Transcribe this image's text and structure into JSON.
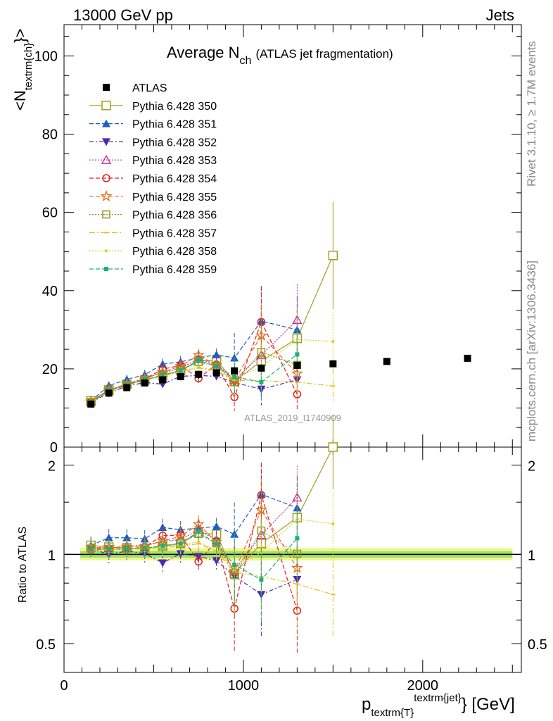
{
  "header": {
    "left": "13000 GeV pp",
    "right": "Jets"
  },
  "side": {
    "rivet": "Rivet 3.1.10, ≥ 1.7M events",
    "mcplots": "mcplots.cern.ch [arXiv:1306.3436]"
  },
  "chart_data": [
    {
      "type": "scatter",
      "title_main": "Average N",
      "title_sub": "ch",
      "title_tail": "(ATLAS jet fragmentation)",
      "ylabel_main": "<N",
      "ylabel_sub": "textrm{ch}",
      "ylabel_tail": "}>",
      "watermark": "ATLAS_2019_I1740909",
      "xlim": [
        0,
        2550
      ],
      "ylim": [
        0,
        108
      ],
      "yticks": [
        "0",
        "20",
        "40",
        "60",
        "80",
        "100"
      ],
      "yticks_values": [
        0,
        20,
        40,
        60,
        80,
        100
      ],
      "x": [
        150,
        250,
        350,
        450,
        550,
        650,
        750,
        850,
        950,
        1100,
        1300,
        1500,
        1800,
        2250
      ],
      "data": {
        "name": "ATLAS",
        "color": "#000000",
        "values": [
          11,
          13.8,
          15.2,
          16.4,
          17.2,
          18,
          18.6,
          19,
          19.5,
          20.2,
          20.9,
          21.3,
          21.9,
          22.7
        ]
      },
      "series": [
        {
          "name": "Pythia 6.428 350",
          "color": "#a0a020",
          "marker": "open-square",
          "dash": "",
          "values": [
            11.8,
            14.6,
            16,
            17.1,
            18.3,
            19.6,
            22,
            22.2,
            16.8,
            22,
            27.8,
            49
          ]
        },
        {
          "name": "Pythia 6.428 351",
          "color": "#1f5fbf",
          "marker": "triangle-up",
          "dash": "6,3",
          "values": [
            11.8,
            15.7,
            17.3,
            18.5,
            21.2,
            21.8,
            22.8,
            23.6,
            22.8,
            32.2,
            30
          ]
        },
        {
          "name": "Pythia 6.428 352",
          "color": "#4b2ab0",
          "marker": "triangle-down",
          "dash": "6,3,2,3",
          "values": [
            11.5,
            13.8,
            15.6,
            16.5,
            16.1,
            18.1,
            18.3,
            18.1,
            16.5,
            14.8,
            17.2
          ]
        },
        {
          "name": "Pythia 6.428 353",
          "color": "#c0289a",
          "marker": "open-triangle",
          "dash": "2,2",
          "values": [
            11.6,
            14.5,
            16.2,
            17.6,
            19,
            20.2,
            22.5,
            21.2,
            17.2,
            23.5,
            32.5
          ]
        },
        {
          "name": "Pythia 6.428 354",
          "color": "#e02020",
          "marker": "open-circle",
          "dash": "6,3",
          "values": [
            11.4,
            14.4,
            15.8,
            17.4,
            19.9,
            20.9,
            17.6,
            21.1,
            12.8,
            32,
            13.5
          ]
        },
        {
          "name": "Pythia 6.428 355",
          "color": "#ee6a1a",
          "marker": "open-star",
          "dash": "6,3",
          "values": [
            11.6,
            14.6,
            16.1,
            17.5,
            19.1,
            20.7,
            23.5,
            20.9,
            17.1,
            28.5,
            18.8
          ]
        },
        {
          "name": "Pythia 6.428 356",
          "color": "#8c9a20",
          "marker": "open-square-small",
          "dash": "2,2",
          "values": [
            11.5,
            14.4,
            15.9,
            17.2,
            18.4,
            19.6,
            21.8,
            20.7,
            16.6,
            24.3,
            21
          ]
        },
        {
          "name": "Pythia 6.428 357",
          "color": "#e0c020",
          "marker": "dot-dash",
          "dash": "8,3,2,3",
          "values": [
            11.4,
            14.3,
            15.9,
            17.2,
            18.1,
            19.2,
            20.2,
            19.5,
            17,
            17,
            16.6,
            15.6
          ]
        },
        {
          "name": "Pythia 6.428 358",
          "color": "#d8d020",
          "marker": "dot",
          "dash": "2,2",
          "values": [
            11.5,
            14.4,
            15.9,
            17.2,
            18.2,
            19.4,
            20.5,
            19.5,
            17.5,
            20.5,
            27.5,
            27
          ]
        },
        {
          "name": "Pythia 6.428 359",
          "color": "#1ab080",
          "marker": "filled-square-small",
          "dash": "6,3",
          "values": [
            11.5,
            14.4,
            15.9,
            17.2,
            18.4,
            19.6,
            22.2,
            20.6,
            18,
            16.6,
            23.7
          ]
        }
      ]
    },
    {
      "type": "scatter",
      "ylabel": "Ratio to ATLAS",
      "xlabel_main": "p",
      "xlabel_sub": "textrm{T}",
      "xlabel_sup": "textrm{jet}",
      "xlabel_tail": "} [GeV]",
      "scale": "log",
      "xlim": [
        0,
        2550
      ],
      "ylim": [
        0.4,
        2.3
      ],
      "yticks": [
        "0.5",
        "1",
        "2"
      ],
      "yticks_values": [
        0.5,
        1,
        2
      ],
      "xticks": [
        "0",
        "1000",
        "2000"
      ],
      "xticks_values": [
        0,
        1000,
        2000
      ],
      "reference": 1
    }
  ]
}
